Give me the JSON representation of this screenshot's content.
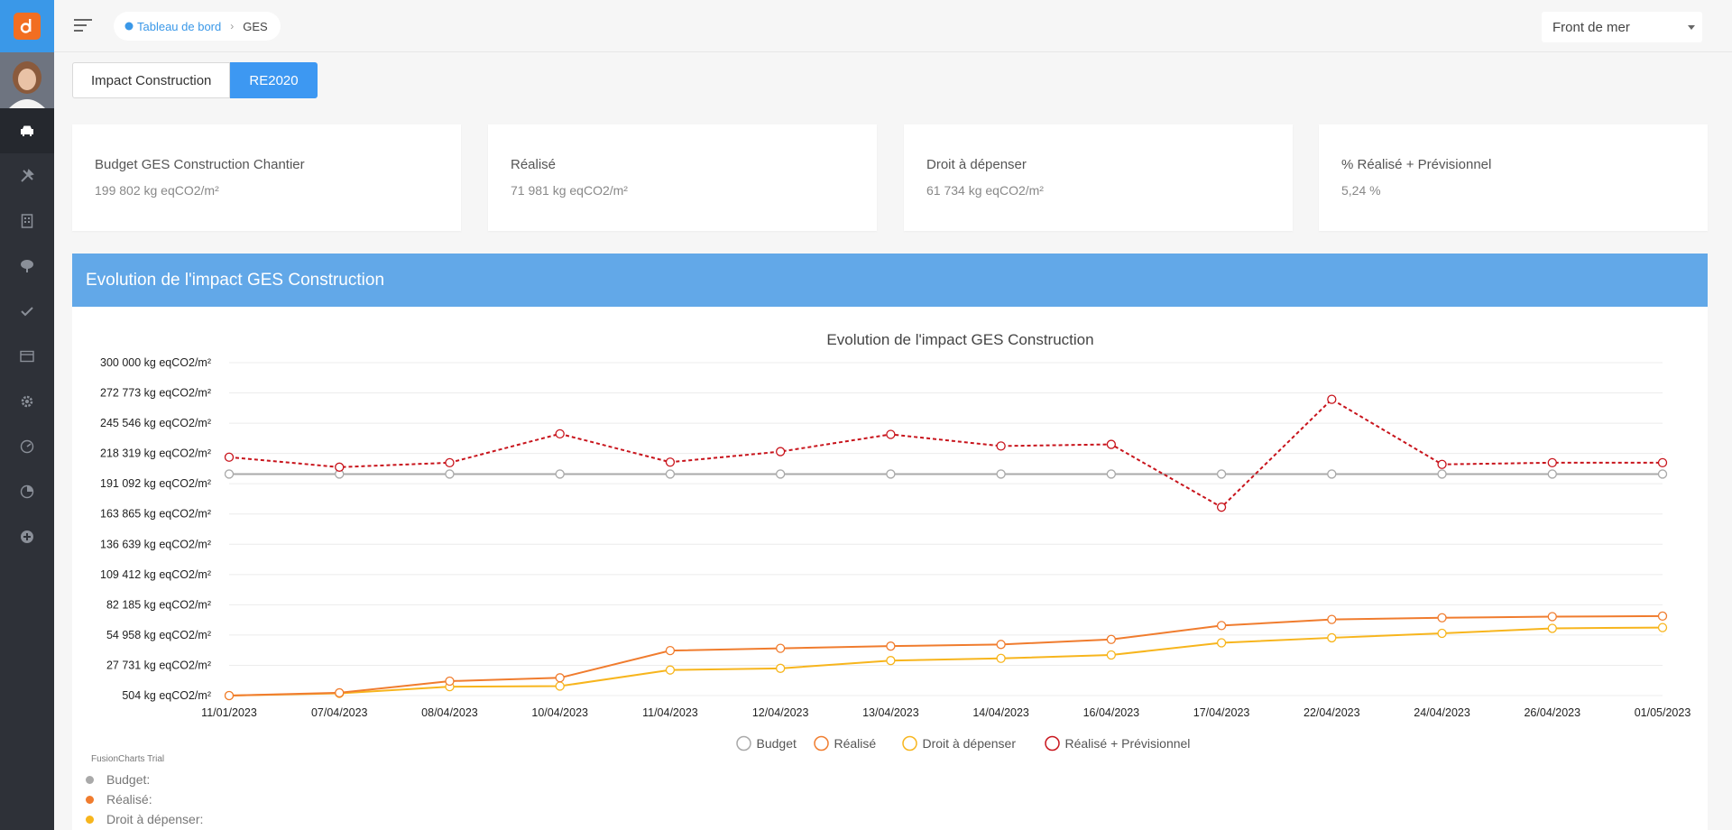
{
  "nav": {
    "breadcrumb_home": "Tableau de bord",
    "breadcrumb_current": "GES",
    "project_select": "Front de mer"
  },
  "tabs": [
    {
      "label": "Impact Construction",
      "active": false
    },
    {
      "label": "RE2020",
      "active": true
    }
  ],
  "cards": [
    {
      "title": "Budget GES Construction Chantier",
      "value": "199 802 kg eqCO2/m²"
    },
    {
      "title": "Réalisé",
      "value": "71 981 kg eqCO2/m²"
    },
    {
      "title": "Droit à dépenser",
      "value": "61 734 kg eqCO2/m²"
    },
    {
      "title": "% Réalisé + Prévisionnel",
      "value": "5,24 %"
    }
  ],
  "panel": {
    "header": "Evolution de l'impact GES Construction"
  },
  "trial_text": "FusionCharts Trial",
  "tooltip": [
    {
      "label": "Budget:",
      "color": "#a9a9a9"
    },
    {
      "label": "Réalisé:",
      "color": "#f07c2e"
    },
    {
      "label": "Droit à dépenser:",
      "color": "#f7b51d"
    }
  ],
  "chart_data": {
    "type": "line",
    "title": "Evolution de l'impact GES Construction",
    "categories": [
      "11/01/2023",
      "07/04/2023",
      "08/04/2023",
      "10/04/2023",
      "11/04/2023",
      "12/04/2023",
      "13/04/2023",
      "14/04/2023",
      "16/04/2023",
      "17/04/2023",
      "22/04/2023",
      "24/04/2023",
      "26/04/2023",
      "01/05/2023"
    ],
    "ylim": [
      504,
      300000
    ],
    "ytick_labels": [
      "300 000 kg eqCO2/m²",
      "272 773 kg eqCO2/m²",
      "245 546 kg eqCO2/m²",
      "218 319 kg eqCO2/m²",
      "191 092 kg eqCO2/m²",
      "163 865 kg eqCO2/m²",
      "136 639 kg eqCO2/m²",
      "109 412 kg eqCO2/m²",
      "82 185 kg eqCO2/m²",
      "54 958 kg eqCO2/m²",
      "27 731 kg eqCO2/m²",
      "504 kg eqCO2/m²"
    ],
    "grid": true,
    "legend_position": "bottom",
    "series": [
      {
        "name": "Budget",
        "color": "#a9a9a9",
        "dashed": false,
        "values": [
          199802,
          199802,
          199802,
          199802,
          199802,
          199802,
          199802,
          199802,
          199802,
          199802,
          199802,
          199802,
          199802,
          199802
        ]
      },
      {
        "name": "Réalisé",
        "color": "#f07c2e",
        "dashed": false,
        "values": [
          504,
          3000,
          13500,
          16500,
          41000,
          43000,
          45000,
          46500,
          51000,
          63500,
          69000,
          70500,
          71500,
          72000
        ]
      },
      {
        "name": "Droit à dépenser",
        "color": "#f7b51d",
        "dashed": false,
        "values": [
          504,
          2500,
          8500,
          9000,
          23500,
          25000,
          32000,
          34000,
          37000,
          48000,
          52500,
          56500,
          61000,
          61700
        ]
      },
      {
        "name": "Réalisé + Prévisionnel",
        "color": "#c8141c",
        "dashed": true,
        "values": [
          215000,
          206000,
          210000,
          236000,
          210500,
          220000,
          235500,
          225000,
          226500,
          170000,
          267000,
          208500,
          210000,
          210000
        ]
      }
    ]
  }
}
